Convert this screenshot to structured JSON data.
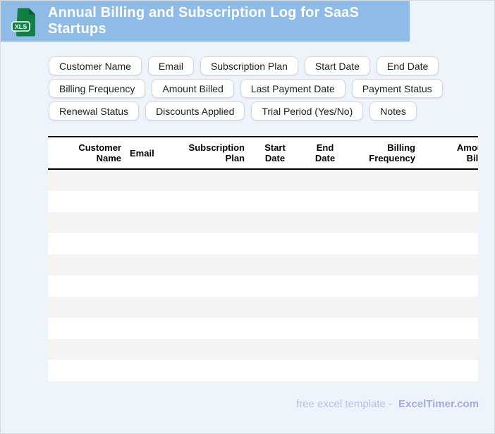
{
  "window": {
    "background": "#eef4fc",
    "border_color": "#d6dbe1"
  },
  "header": {
    "title": "Annual Billing and Subscription Log for SaaS Startups",
    "bar_color": "#8fbbe7",
    "icon": {
      "label": "XLS",
      "body_color": "#0e8044",
      "fold_color": "#0a5c30"
    }
  },
  "pills": [
    "Customer Name",
    "Email",
    "Subscription Plan",
    "Start Date",
    "End Date",
    "Billing Frequency",
    "Amount Billed",
    "Last Payment Date",
    "Payment Status",
    "Renewal Status",
    "Discounts Applied",
    "Trial Period (Yes/No)",
    "Notes"
  ],
  "table": {
    "columns": [
      {
        "label": "Customer\nName"
      },
      {
        "label": "Email"
      },
      {
        "label": "Subscription\nPlan"
      },
      {
        "label": "Start\nDate"
      },
      {
        "label": "End\nDate"
      },
      {
        "label": "Billing\nFrequency"
      },
      {
        "label": "Amount\nBilled"
      }
    ],
    "row_count": 10,
    "stripe_color": "#f5f4f2",
    "row_color": "#ffffff",
    "border_color": "#000000"
  },
  "footer": {
    "text": "free excel template -",
    "brand": "ExcelTimer.com"
  }
}
